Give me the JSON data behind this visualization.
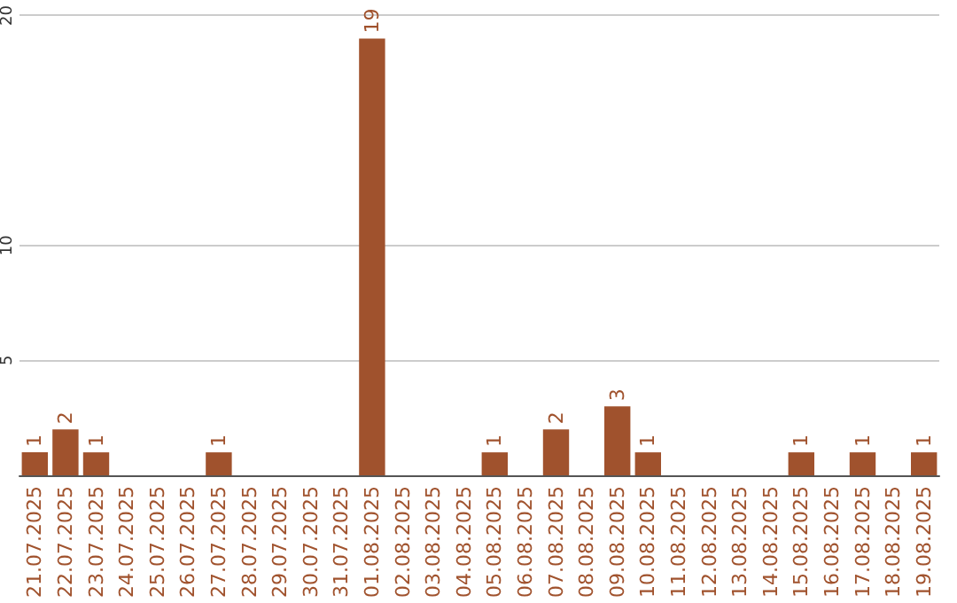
{
  "chart_data": {
    "type": "bar",
    "categories": [
      "21.07.2025",
      "22.07.2025",
      "23.07.2025",
      "24.07.2025",
      "25.07.2025",
      "26.07.2025",
      "27.07.2025",
      "28.07.2025",
      "29.07.2025",
      "30.07.2025",
      "31.07.2025",
      "01.08.2025",
      "02.08.2025",
      "03.08.2025",
      "04.08.2025",
      "05.08.2025",
      "06.08.2025",
      "07.08.2025",
      "08.08.2025",
      "09.08.2025",
      "10.08.2025",
      "11.08.2025",
      "12.08.2025",
      "13.08.2025",
      "14.08.2025",
      "15.08.2025",
      "16.08.2025",
      "17.08.2025",
      "18.08.2025",
      "19.08.2025"
    ],
    "values": [
      1,
      2,
      1,
      0,
      0,
      0,
      1,
      0,
      0,
      0,
      0,
      19,
      0,
      0,
      0,
      1,
      0,
      2,
      0,
      3,
      1,
      0,
      0,
      0,
      0,
      1,
      0,
      1,
      0,
      1
    ],
    "value_labels": [
      "1",
      "2",
      "1",
      null,
      null,
      null,
      "1",
      null,
      null,
      null,
      null,
      "19",
      null,
      null,
      null,
      "1",
      null,
      "2",
      null,
      "3",
      "1",
      null,
      null,
      null,
      null,
      "1",
      null,
      "1",
      null,
      "1"
    ],
    "color": "#a0522d",
    "ylim": [
      0,
      20
    ],
    "yticks": [
      5,
      10,
      20
    ],
    "grid": "y"
  }
}
